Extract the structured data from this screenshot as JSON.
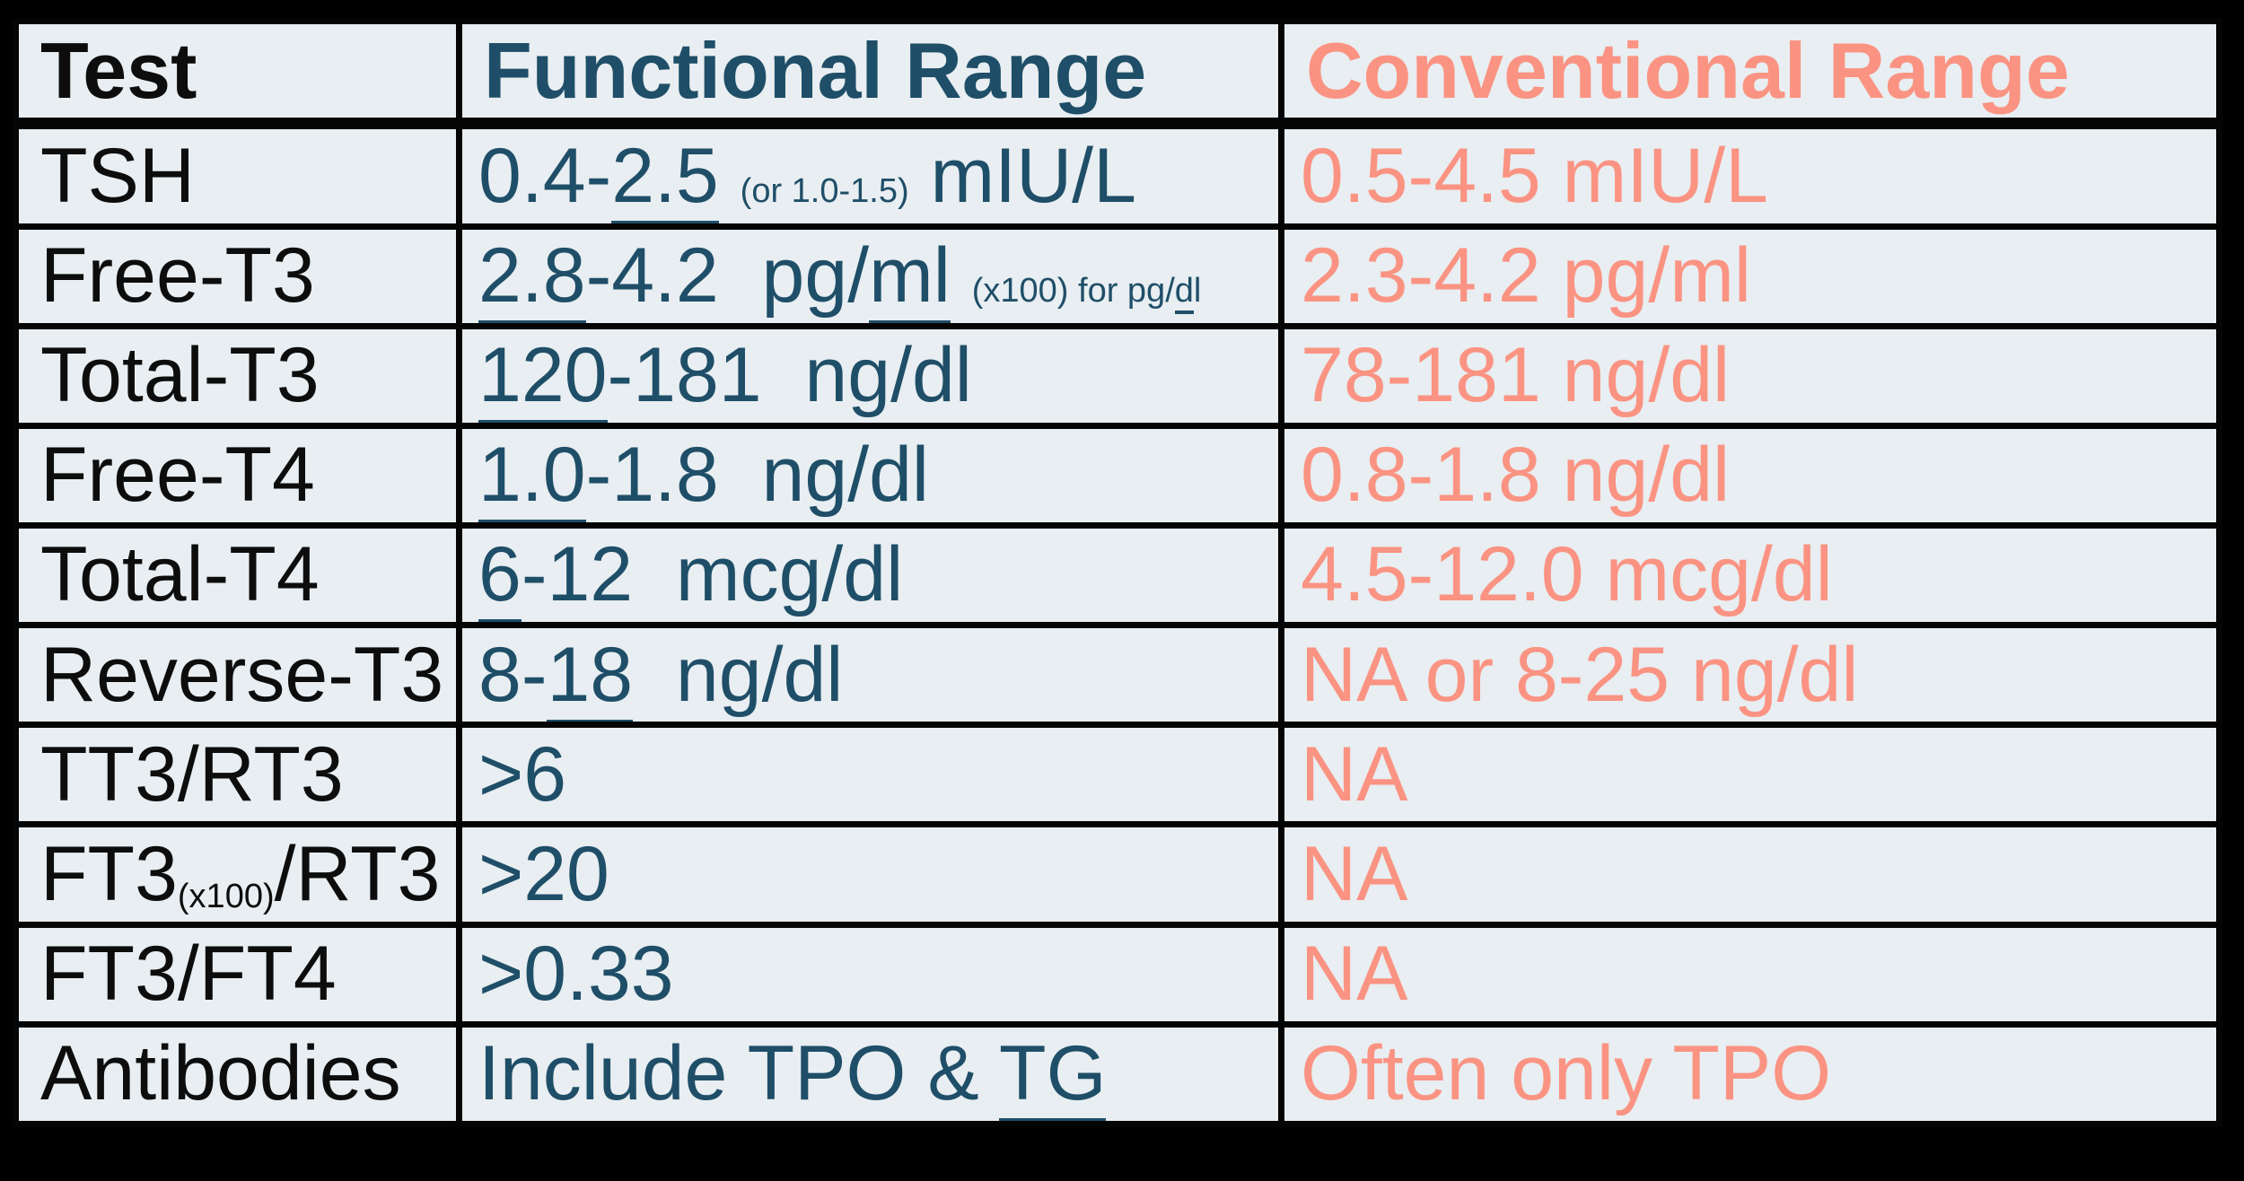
{
  "colors": {
    "page_bg": "#000000",
    "cell_bg": "#E8EEF1",
    "grid": "#050505",
    "test_text": "#0d0d0d",
    "functional_text": "#1F4E68",
    "conventional_text": "#FB9383"
  },
  "header": {
    "col_test": "Test",
    "col_functional": "Functional Range",
    "col_conventional": "Conventional Range"
  },
  "rows": [
    {
      "test": [
        {
          "t": "TSH"
        }
      ],
      "functional": [
        {
          "t": "0.4-"
        },
        {
          "t": "2.5",
          "u": true
        },
        {
          "t": " "
        },
        {
          "t": "(or 1.0-1.5)",
          "small": true
        },
        {
          "t": " mIU/L"
        }
      ],
      "conventional": [
        {
          "t": "0.5-4.5 mIU/L"
        }
      ]
    },
    {
      "test": [
        {
          "t": "Free-T3"
        }
      ],
      "functional": [
        {
          "t": "2.8",
          "u": true
        },
        {
          "t": "-4.2  pg/"
        },
        {
          "t": "ml",
          "u": true
        },
        {
          "t": " "
        },
        {
          "t": "(x100) for pg/",
          "small": true
        },
        {
          "t": "d",
          "small": true,
          "u": true
        },
        {
          "t": "l",
          "small": true
        }
      ],
      "conventional": [
        {
          "t": "2.3-4.2 pg/ml"
        }
      ]
    },
    {
      "test": [
        {
          "t": "Total-T3"
        }
      ],
      "functional": [
        {
          "t": "120",
          "u": true
        },
        {
          "t": "-181  ng/dl"
        }
      ],
      "conventional": [
        {
          "t": "78-181 ng/dl"
        }
      ]
    },
    {
      "test": [
        {
          "t": "Free-T4"
        }
      ],
      "functional": [
        {
          "t": "1.0",
          "u": true
        },
        {
          "t": "-1.8  ng/dl"
        }
      ],
      "conventional": [
        {
          "t": "0.8-1.8 ng/dl"
        }
      ]
    },
    {
      "test": [
        {
          "t": "Total-T4"
        }
      ],
      "functional": [
        {
          "t": "6",
          "u": true
        },
        {
          "t": "-12  mcg/dl"
        }
      ],
      "conventional": [
        {
          "t": "4.5-12.0 mcg/dl"
        }
      ]
    },
    {
      "test": [
        {
          "t": "Reverse-T3"
        }
      ],
      "functional": [
        {
          "t": "8-"
        },
        {
          "t": "18",
          "u": true
        },
        {
          "t": "  ng/dl"
        }
      ],
      "conventional": [
        {
          "t": "NA or 8-25 ng/dl"
        }
      ]
    },
    {
      "test": [
        {
          "t": "TT3/RT3"
        }
      ],
      "functional": [
        {
          "t": ">6"
        }
      ],
      "conventional": [
        {
          "t": "NA"
        }
      ]
    },
    {
      "test": [
        {
          "t": "FT3"
        },
        {
          "t": "(x100)",
          "sub": true
        },
        {
          "t": "/RT3"
        }
      ],
      "functional": [
        {
          "t": ">20"
        }
      ],
      "conventional": [
        {
          "t": "NA"
        }
      ]
    },
    {
      "test": [
        {
          "t": "FT3/FT4"
        }
      ],
      "functional": [
        {
          "t": ">0.33"
        }
      ],
      "conventional": [
        {
          "t": "NA"
        }
      ]
    },
    {
      "test": [
        {
          "t": "Antibodies"
        }
      ],
      "functional": [
        {
          "t": "Include TPO & "
        },
        {
          "t": "TG",
          "u": true
        }
      ],
      "conventional": [
        {
          "t": "Often only TPO"
        }
      ]
    }
  ]
}
